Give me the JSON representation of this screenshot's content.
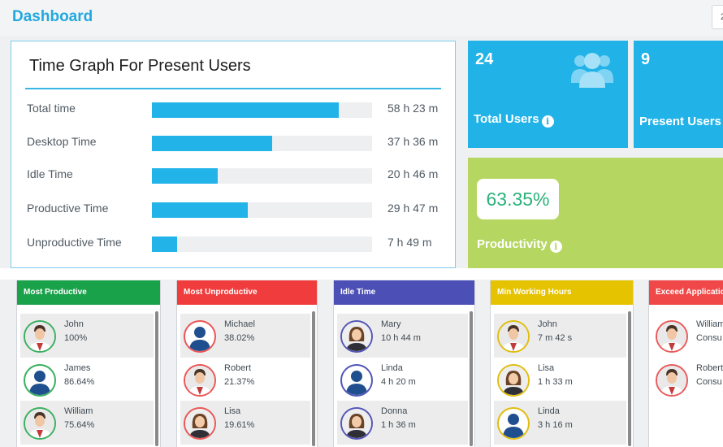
{
  "header": {
    "title": "Dashboard",
    "right_box_text": "2"
  },
  "time_graph": {
    "title": "Time Graph For Present Users",
    "rows": [
      {
        "label": "Total time",
        "value": "58 h 23 m",
        "fill": 0.85
      },
      {
        "label": "Desktop Time",
        "value": "37 h 36 m",
        "fill": 0.545
      },
      {
        "label": "Idle Time",
        "value": "20 h 46 m",
        "fill": 0.3
      },
      {
        "label": "Productive Time",
        "value": "29 h 47 m",
        "fill": 0.435
      },
      {
        "label": "Unproductive Time",
        "value": "7 h 49 m",
        "fill": 0.115
      }
    ]
  },
  "tiles": {
    "total_users": {
      "value": "24",
      "label": "Total Users"
    },
    "present_users": {
      "value": "9",
      "label": "Present Users"
    },
    "productivity": {
      "value": "63.35%",
      "label": "Productivity"
    }
  },
  "panels": [
    {
      "title": "Most Productive",
      "color": "#1aa24a",
      "ring": "#39b060",
      "items": [
        {
          "name": "John",
          "value": "100%",
          "avatar": "man-photo"
        },
        {
          "name": "James",
          "value": "86.64%",
          "avatar": "silhouette"
        },
        {
          "name": "William",
          "value": "75.64%",
          "avatar": "man-photo"
        }
      ]
    },
    {
      "title": "Most Unproductive",
      "color": "#f03c3c",
      "ring": "#ea5656",
      "items": [
        {
          "name": "Michael",
          "value": "38.02%",
          "avatar": "silhouette"
        },
        {
          "name": "Robert",
          "value": "21.37%",
          "avatar": "man-photo"
        },
        {
          "name": "Lisa",
          "value": "19.61%",
          "avatar": "woman-photo"
        }
      ]
    },
    {
      "title": "Idle Time",
      "color": "#4c4fb6",
      "ring": "#5356b8",
      "items": [
        {
          "name": "Mary",
          "value": "10 h 44 m",
          "avatar": "woman-photo"
        },
        {
          "name": "Linda",
          "value": "4 h 20 m",
          "avatar": "silhouette"
        },
        {
          "name": "Donna",
          "value": "1 h 36 m",
          "avatar": "woman-photo"
        }
      ]
    },
    {
      "title": "Min Working Hours",
      "color": "#e6c300",
      "ring": "#e0bd10",
      "items": [
        {
          "name": "John",
          "value": "7 m 42 s",
          "avatar": "man-photo"
        },
        {
          "name": "Lisa",
          "value": "1 h 33 m",
          "avatar": "woman-photo"
        },
        {
          "name": "Linda",
          "value": "3 h 16 m",
          "avatar": "silhouette"
        }
      ]
    },
    {
      "title": "Exceed Application",
      "color": "#f04848",
      "ring": "#ea5a5a",
      "items": [
        {
          "name": "William",
          "value": "Consu",
          "avatar": "man-photo"
        },
        {
          "name": "Robert",
          "value": "Consu",
          "avatar": "man-photo"
        }
      ]
    }
  ]
}
